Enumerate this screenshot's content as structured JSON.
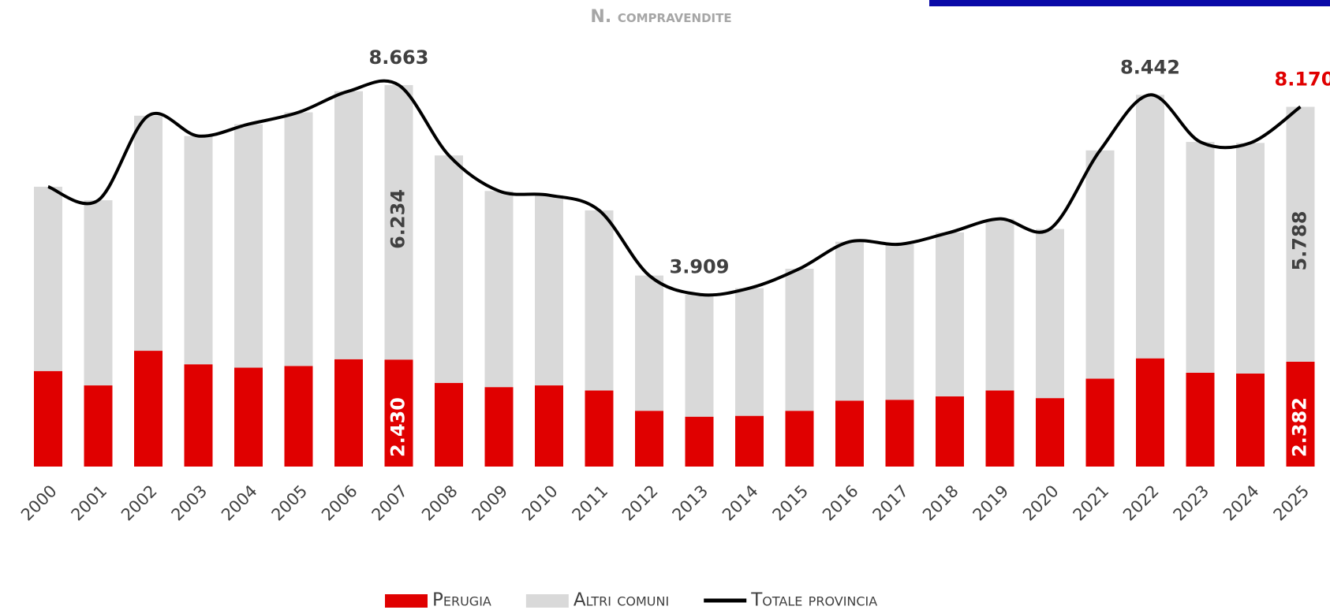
{
  "chart_data": {
    "type": "bar",
    "stacked": true,
    "title": "N. compravendite",
    "categories": [
      "2000",
      "2001",
      "2002",
      "2003",
      "2004",
      "2005",
      "2006",
      "2007",
      "2008",
      "2009",
      "2010",
      "2011",
      "2012",
      "2013",
      "2014",
      "2015",
      "2016",
      "2017",
      "2018",
      "2019",
      "2020",
      "2021",
      "2022",
      "2023",
      "2024",
      "2025"
    ],
    "series": [
      {
        "name": "Perugia",
        "color": "#e00000",
        "type": "bar",
        "values": [
          2170,
          1843,
          2630,
          2323,
          2246,
          2285,
          2438,
          2430,
          1901,
          1805,
          1843,
          1728,
          1267,
          1133,
          1152,
          1267,
          1498,
          1517,
          1594,
          1728,
          1555,
          1997,
          2458,
          2131,
          2112,
          2382
        ],
        "value_labels": [
          null,
          null,
          null,
          null,
          null,
          null,
          null,
          "2.430",
          null,
          null,
          null,
          null,
          null,
          null,
          null,
          null,
          null,
          null,
          null,
          null,
          null,
          null,
          null,
          null,
          null,
          "2.382"
        ]
      },
      {
        "name": "Altri comuni",
        "color": "#d9d9d9",
        "type": "bar",
        "values": [
          4185,
          4205,
          5338,
          5184,
          5530,
          5760,
          6087,
          6234,
          5165,
          4454,
          4320,
          4090,
          3072,
          2776,
          2899,
          3226,
          3609,
          3533,
          3724,
          3898,
          3840,
          5184,
          5984,
          5242,
          5238,
          5788
        ],
        "value_labels": [
          null,
          null,
          null,
          null,
          null,
          null,
          null,
          "6.234",
          null,
          null,
          null,
          null,
          null,
          null,
          null,
          null,
          null,
          null,
          null,
          null,
          null,
          null,
          null,
          null,
          null,
          "5.788"
        ]
      },
      {
        "name": "Totale provincia",
        "color": "#000000",
        "type": "line",
        "values": [
          6355,
          6048,
          7968,
          7507,
          7776,
          8045,
          8525,
          8663,
          7066,
          6259,
          6163,
          5818,
          4339,
          3909,
          4051,
          4493,
          5107,
          5050,
          5318,
          5626,
          5395,
          7181,
          8442,
          7373,
          7350,
          8170
        ],
        "value_labels": [
          null,
          null,
          null,
          null,
          null,
          null,
          null,
          "8.663",
          null,
          null,
          null,
          null,
          null,
          "3.909",
          null,
          null,
          null,
          null,
          null,
          null,
          null,
          null,
          "8.442",
          null,
          null,
          "8.170"
        ]
      }
    ]
  }
}
